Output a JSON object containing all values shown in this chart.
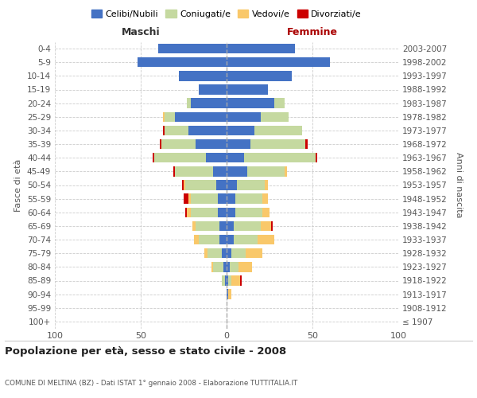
{
  "age_groups": [
    "100+",
    "95-99",
    "90-94",
    "85-89",
    "80-84",
    "75-79",
    "70-74",
    "65-69",
    "60-64",
    "55-59",
    "50-54",
    "45-49",
    "40-44",
    "35-39",
    "30-34",
    "25-29",
    "20-24",
    "15-19",
    "10-14",
    "5-9",
    "0-4"
  ],
  "birth_years": [
    "≤ 1907",
    "1908-1912",
    "1913-1917",
    "1918-1922",
    "1923-1927",
    "1928-1932",
    "1933-1937",
    "1938-1942",
    "1943-1947",
    "1948-1952",
    "1953-1957",
    "1958-1962",
    "1963-1967",
    "1968-1972",
    "1973-1977",
    "1978-1982",
    "1983-1987",
    "1988-1992",
    "1993-1997",
    "1998-2002",
    "2003-2007"
  ],
  "male": {
    "single": [
      0,
      0,
      0,
      1,
      2,
      3,
      4,
      4,
      5,
      5,
      6,
      8,
      12,
      18,
      22,
      30,
      21,
      16,
      28,
      52,
      40
    ],
    "married": [
      0,
      0,
      0,
      2,
      6,
      8,
      12,
      14,
      16,
      16,
      18,
      22,
      30,
      20,
      14,
      6,
      2,
      0,
      0,
      0,
      0
    ],
    "widowed": [
      0,
      0,
      0,
      0,
      1,
      2,
      3,
      2,
      2,
      1,
      1,
      0,
      0,
      0,
      0,
      1,
      0,
      0,
      0,
      0,
      0
    ],
    "divorced": [
      0,
      0,
      0,
      0,
      0,
      0,
      0,
      0,
      1,
      3,
      1,
      1,
      1,
      1,
      1,
      0,
      0,
      0,
      0,
      0,
      0
    ]
  },
  "female": {
    "single": [
      0,
      0,
      1,
      1,
      2,
      3,
      4,
      4,
      5,
      5,
      6,
      12,
      10,
      14,
      16,
      20,
      28,
      24,
      38,
      60,
      40
    ],
    "married": [
      0,
      0,
      0,
      2,
      5,
      8,
      14,
      16,
      16,
      16,
      16,
      22,
      42,
      32,
      28,
      16,
      6,
      0,
      0,
      0,
      0
    ],
    "widowed": [
      0,
      0,
      2,
      5,
      8,
      10,
      10,
      6,
      4,
      3,
      2,
      1,
      0,
      0,
      0,
      0,
      0,
      0,
      0,
      0,
      0
    ],
    "divorced": [
      0,
      0,
      0,
      1,
      0,
      0,
      0,
      1,
      0,
      0,
      0,
      0,
      1,
      1,
      0,
      0,
      0,
      0,
      0,
      0,
      0
    ]
  },
  "colors": {
    "single": "#4472C4",
    "married": "#C5D9A0",
    "widowed": "#F9C86A",
    "divorced": "#CC0000"
  },
  "xlim": 100,
  "title": "Popolazione per età, sesso e stato civile - 2008",
  "subtitle": "COMUNE DI MELTINA (BZ) - Dati ISTAT 1° gennaio 2008 - Elaborazione TUTTITALIA.IT",
  "ylabel_left": "Fasce di età",
  "ylabel_right": "Anni di nascita",
  "legend_labels": [
    "Celibi/Nubili",
    "Coniugati/e",
    "Vedovi/e",
    "Divorziati/e"
  ]
}
